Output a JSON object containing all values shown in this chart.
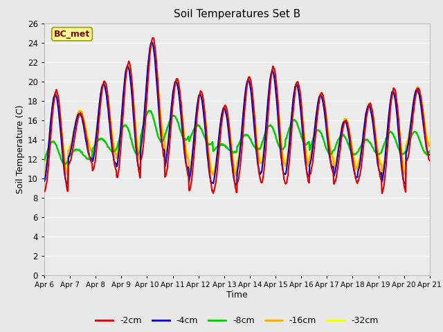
{
  "title": "Soil Temperatures Set B",
  "xlabel": "Time",
  "ylabel": "Soil Temperature (C)",
  "annotation": "BC_met",
  "annotation_color": "#8b0000",
  "ylim": [
    0,
    26
  ],
  "yticks": [
    0,
    2,
    4,
    6,
    8,
    10,
    12,
    14,
    16,
    18,
    20,
    22,
    24,
    26
  ],
  "xtick_labels": [
    "Apr 6",
    "Apr 7",
    "Apr 8",
    "Apr 9",
    "Apr 10",
    "Apr 11",
    "Apr 12",
    "Apr 13",
    "Apr 14",
    "Apr 15",
    "Apr 16",
    "Apr 17",
    "Apr 18",
    "Apr 19",
    "Apr 20",
    "Apr 21"
  ],
  "n_days": 16,
  "ppd": 48,
  "series_colors": [
    "#dd0000",
    "#0000cc",
    "#00cc00",
    "#ffaa00",
    "#ffff00"
  ],
  "series_labels": [
    "-2cm",
    "-4cm",
    "-8cm",
    "-16cm",
    "-32cm"
  ],
  "bg_color": "#e8e8e8",
  "plot_bg_color": "#ebebeb",
  "grid_color": "#ffffff",
  "legend_bg": "#ffff99",
  "legend_border": "#999900",
  "figsize": [
    6.4,
    4.8
  ],
  "dpi": 100,
  "day_peaks_2cm": [
    19.0,
    16.7,
    20.0,
    22.0,
    24.5,
    20.3,
    19.0,
    17.5,
    20.5,
    21.5,
    20.0,
    18.8,
    16.0,
    17.7,
    19.3,
    19.3
  ],
  "day_troughs_2cm": [
    8.6,
    11.5,
    10.8,
    10.0,
    12.0,
    10.2,
    8.7,
    8.6,
    9.7,
    9.5,
    9.4,
    10.5,
    9.5,
    9.8,
    8.6,
    11.8
  ],
  "green_peaks": [
    13.8,
    13.0,
    14.1,
    15.5,
    17.0,
    16.5,
    15.5,
    13.5,
    14.5,
    15.5,
    16.0,
    15.0,
    14.5,
    14.0,
    14.8,
    14.8
  ],
  "green_troughs": [
    11.5,
    12.0,
    12.8,
    12.5,
    13.8,
    14.0,
    13.5,
    12.7,
    13.0,
    13.0,
    13.5,
    12.5,
    12.5,
    12.5,
    12.5,
    12.5
  ]
}
